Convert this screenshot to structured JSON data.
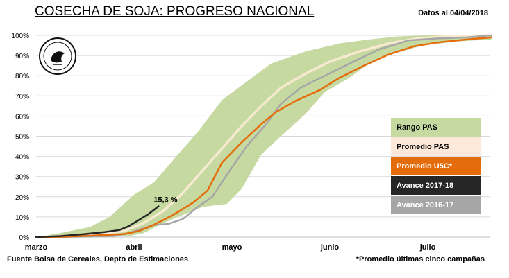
{
  "title": "COSECHA DE SOJA: PROGRESO NACIONAL",
  "date_label": "Datos al 04/04/2018",
  "source": "Fuente Bolsa de Cereales, Depto de Estimaciones",
  "footnote": "*Promedio últimas cinco campañas",
  "logo_text": "Bolsa de Cereales · Buenos Aires",
  "annotation": "15,3 %",
  "colors": {
    "range": "#c5d9a0",
    "pas_avg": "#fae8d3",
    "pas_avg_line": "#f7ead0",
    "u5c": "#e46c0a",
    "y2017_18": "#262626",
    "y2016_17": "#a6a6a6"
  },
  "legend": [
    {
      "label": "Rango PAS",
      "bg": "#c5d9a0",
      "fg": "#000000"
    },
    {
      "label": "Promedio PAS",
      "bg": "#fde9d9",
      "fg": "#000000"
    },
    {
      "label": "Promedio  U5C*",
      "bg": "#e46c0a",
      "fg": "#ffffff"
    },
    {
      "label": "Avance 2017-18",
      "bg": "#262626",
      "fg": "#ffffff"
    },
    {
      "label": "Avance 2016-17",
      "bg": "#a6a6a6",
      "fg": "#ffffff"
    }
  ],
  "chart_data": {
    "type": "area",
    "x_tick_labels": [
      "marzo",
      "abril",
      "mayo",
      "junio",
      "julio"
    ],
    "y_tick_labels": [
      "0%",
      "10%",
      "20%",
      "30%",
      "40%",
      "50%",
      "60%",
      "70%",
      "80%",
      "90%",
      "100%"
    ],
    "ylim": [
      0,
      100
    ],
    "xlim": [
      0,
      4.65
    ],
    "grid": "horizontal",
    "range_upper": [
      [
        0,
        0
      ],
      [
        0.25,
        2
      ],
      [
        0.55,
        5
      ],
      [
        0.75,
        10
      ],
      [
        1.0,
        21
      ],
      [
        1.2,
        27
      ],
      [
        1.45,
        41
      ],
      [
        1.65,
        52
      ],
      [
        1.9,
        68
      ],
      [
        2.15,
        77
      ],
      [
        2.4,
        86
      ],
      [
        2.75,
        92
      ],
      [
        3.1,
        96
      ],
      [
        3.4,
        98
      ],
      [
        3.7,
        99.5
      ],
      [
        4.0,
        100
      ],
      [
        4.65,
        100
      ]
    ],
    "range_lower": [
      [
        0,
        0
      ],
      [
        0.6,
        0
      ],
      [
        0.95,
        0.5
      ],
      [
        1.1,
        2
      ],
      [
        1.3,
        7
      ],
      [
        1.55,
        12
      ],
      [
        1.7,
        15
      ],
      [
        1.95,
        16.5
      ],
      [
        2.1,
        24
      ],
      [
        2.3,
        41
      ],
      [
        2.5,
        50
      ],
      [
        2.75,
        61
      ],
      [
        2.95,
        72
      ],
      [
        3.2,
        79
      ],
      [
        3.4,
        86
      ],
      [
        3.65,
        91
      ],
      [
        3.95,
        95
      ],
      [
        4.3,
        97
      ],
      [
        4.65,
        98
      ]
    ],
    "series": [
      {
        "name": "Promedio PAS",
        "points": [
          [
            0,
            0
          ],
          [
            0.3,
            0.5
          ],
          [
            0.6,
            1.5
          ],
          [
            0.9,
            3
          ],
          [
            1.1,
            7
          ],
          [
            1.3,
            13
          ],
          [
            1.5,
            22
          ],
          [
            1.7,
            33
          ],
          [
            1.9,
            44
          ],
          [
            2.1,
            55
          ],
          [
            2.3,
            65
          ],
          [
            2.5,
            74
          ],
          [
            2.75,
            81
          ],
          [
            3.0,
            87
          ],
          [
            3.3,
            92
          ],
          [
            3.6,
            96
          ],
          [
            3.9,
            98.5
          ],
          [
            4.2,
            99.5
          ],
          [
            4.65,
            100
          ]
        ]
      },
      {
        "name": "Promedio  U5C*",
        "points": [
          [
            0,
            0
          ],
          [
            0.3,
            0.2
          ],
          [
            0.6,
            0.8
          ],
          [
            0.9,
            1.5
          ],
          [
            1.05,
            3
          ],
          [
            1.2,
            6
          ],
          [
            1.4,
            11
          ],
          [
            1.6,
            17
          ],
          [
            1.75,
            23
          ],
          [
            1.9,
            37
          ],
          [
            2.1,
            47
          ],
          [
            2.3,
            56
          ],
          [
            2.45,
            62
          ],
          [
            2.65,
            67.5
          ],
          [
            2.9,
            73
          ],
          [
            3.1,
            79
          ],
          [
            3.35,
            85
          ],
          [
            3.6,
            90.5
          ],
          [
            3.85,
            94.5
          ],
          [
            4.1,
            96.5
          ],
          [
            4.4,
            98
          ],
          [
            4.65,
            99
          ]
        ]
      },
      {
        "name": "Avance 2017-18",
        "points": [
          [
            0,
            0
          ],
          [
            0.25,
            0.5
          ],
          [
            0.5,
            1.5
          ],
          [
            0.7,
            2.5
          ],
          [
            0.85,
            3.5
          ],
          [
            0.95,
            5.5
          ],
          [
            1.05,
            8.5
          ],
          [
            1.15,
            11.5
          ],
          [
            1.25,
            15.3
          ]
        ]
      },
      {
        "name": "Avance 2016-17",
        "points": [
          [
            0,
            0
          ],
          [
            0.3,
            0.1
          ],
          [
            0.6,
            0.3
          ],
          [
            0.8,
            0.6
          ],
          [
            0.95,
            2
          ],
          [
            1.1,
            4.5
          ],
          [
            1.2,
            6
          ],
          [
            1.35,
            6.5
          ],
          [
            1.5,
            9
          ],
          [
            1.65,
            15
          ],
          [
            1.8,
            20
          ],
          [
            1.95,
            31
          ],
          [
            2.15,
            45
          ],
          [
            2.35,
            56
          ],
          [
            2.5,
            66
          ],
          [
            2.7,
            74
          ],
          [
            2.95,
            80
          ],
          [
            3.2,
            86
          ],
          [
            3.5,
            93
          ],
          [
            3.8,
            97.5
          ],
          [
            4.1,
            98.5
          ],
          [
            4.4,
            99
          ],
          [
            4.65,
            100
          ]
        ]
      }
    ]
  }
}
